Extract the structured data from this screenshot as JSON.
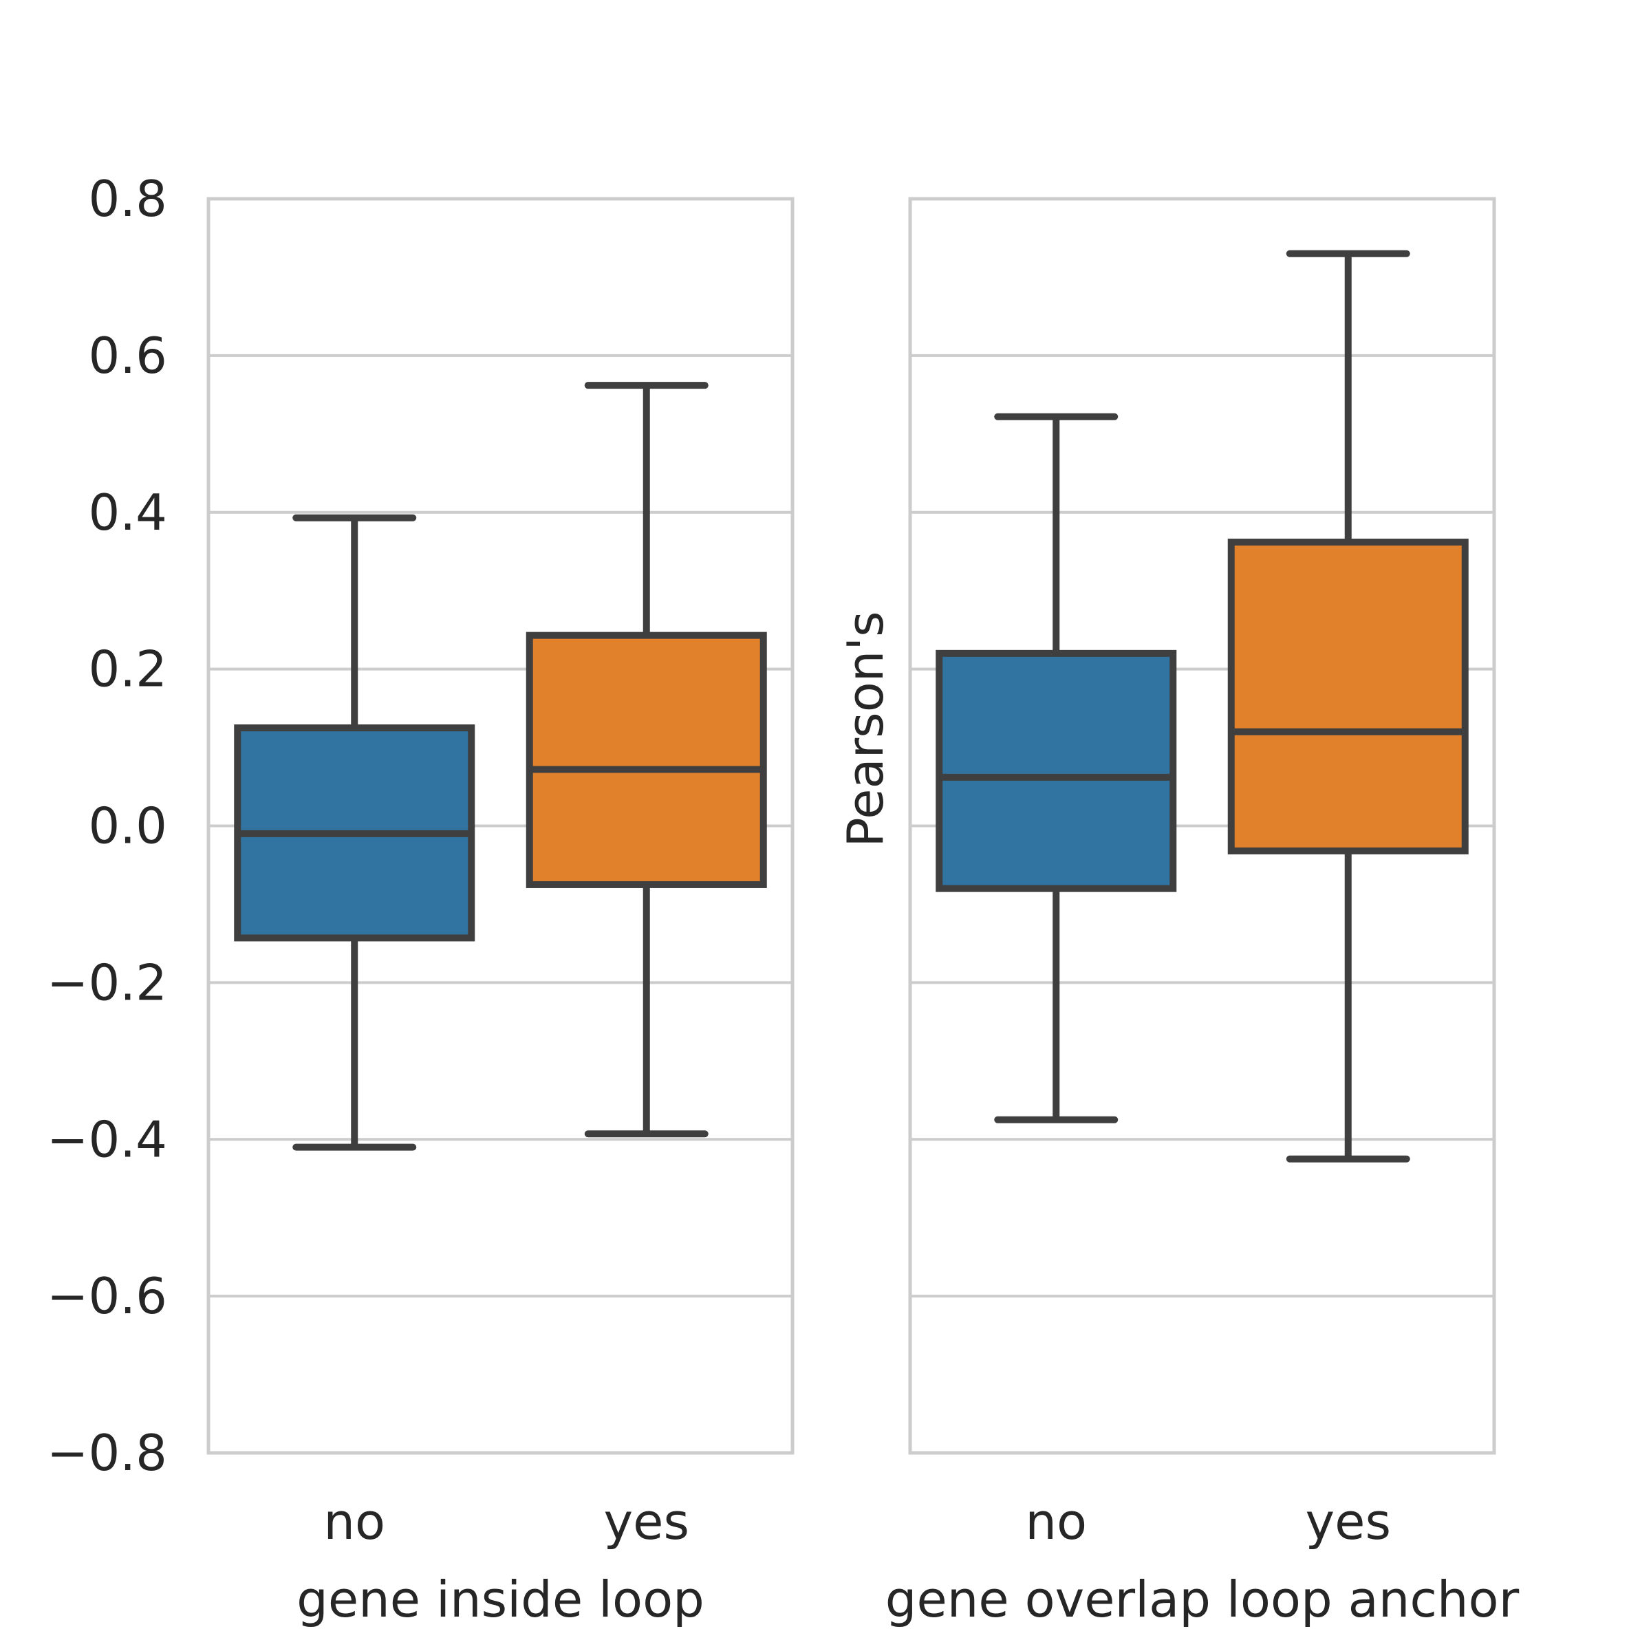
{
  "chart_data": [
    {
      "type": "box",
      "title": "",
      "xlabel": "gene inside loop",
      "ylabel": "",
      "ylim": [
        -0.8,
        0.8
      ],
      "yticks": [
        "0.8",
        "0.6",
        "0.4",
        "0.2",
        "0.0",
        "−0.2",
        "−0.4",
        "−0.6",
        "−0.8"
      ],
      "ytick_values": [
        0.8,
        0.6,
        0.4,
        0.2,
        0.0,
        -0.2,
        -0.4,
        -0.6,
        -0.8
      ],
      "grid": true,
      "categories": [
        "no",
        "yes"
      ],
      "boxes": [
        {
          "category": "no",
          "whisker_low": -0.41,
          "q1": -0.143,
          "median": -0.01,
          "q3": 0.125,
          "whisker_high": 0.393,
          "color": "#3274a1"
        },
        {
          "category": "yes",
          "whisker_low": -0.393,
          "q1": -0.075,
          "median": 0.072,
          "q3": 0.243,
          "whisker_high": 0.562,
          "color": "#e1812c"
        }
      ]
    },
    {
      "type": "box",
      "title": "",
      "xlabel": "gene overlap loop anchor",
      "ylabel": "Pearson's",
      "ylim": [
        -0.8,
        0.8
      ],
      "grid": true,
      "categories": [
        "no",
        "yes"
      ],
      "boxes": [
        {
          "category": "no",
          "whisker_low": -0.375,
          "q1": -0.08,
          "median": 0.062,
          "q3": 0.22,
          "whisker_high": 0.522,
          "color": "#3274a1"
        },
        {
          "category": "yes",
          "whisker_low": -0.425,
          "q1": -0.032,
          "median": 0.12,
          "q3": 0.362,
          "whisker_high": 0.73,
          "color": "#e1812c"
        }
      ]
    }
  ]
}
